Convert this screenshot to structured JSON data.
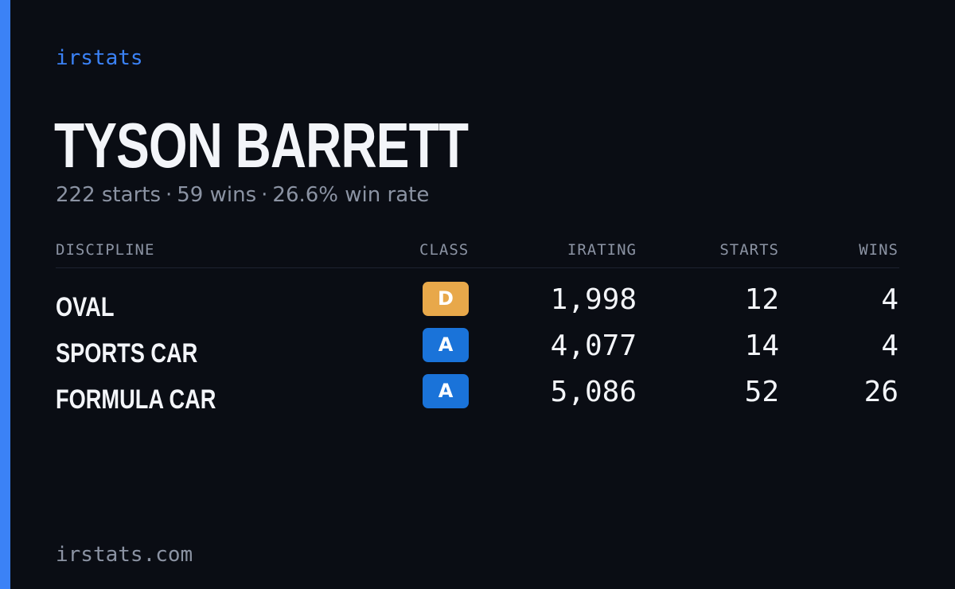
{
  "brand": "irstats",
  "driver": {
    "name": "TYSON BARRETT",
    "starts_text": "222 starts",
    "wins_text": "59 wins",
    "win_rate_text": "26.6% win rate",
    "separator": "·"
  },
  "table": {
    "headers": {
      "discipline": "DISCIPLINE",
      "class": "CLASS",
      "irating": "IRATING",
      "starts": "STARTS",
      "wins": "WINS"
    },
    "rows": [
      {
        "discipline": "OVAL",
        "class": "D",
        "class_color": "#e8a84a",
        "irating": "1,998",
        "starts": "12",
        "wins": "4"
      },
      {
        "discipline": "SPORTS CAR",
        "class": "A",
        "class_color": "#1a73d9",
        "irating": "4,077",
        "starts": "14",
        "wins": "4"
      },
      {
        "discipline": "FORMULA CAR",
        "class": "A",
        "class_color": "#1a73d9",
        "irating": "5,086",
        "starts": "52",
        "wins": "26"
      }
    ]
  },
  "footer": "irstats.com",
  "colors": {
    "accent": "#3b82f6",
    "background": "#0a0d14",
    "text": "#f3f5f9",
    "muted": "#8b93a3"
  }
}
